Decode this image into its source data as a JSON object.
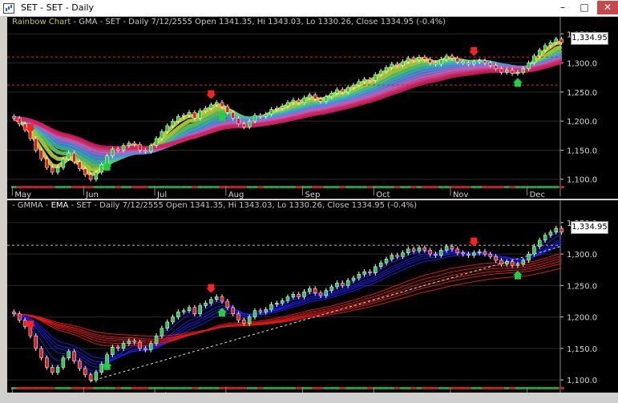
{
  "window": {
    "title": "SET - SET - Daily",
    "min": "–",
    "max": "□",
    "close": "✕"
  },
  "top_panel": {
    "title_prefix": "Rainbow Chart",
    "title_rest": " - GMA - SET - Daily 7/12/2555 Open 1341.35, Hi 1343.03, Lo 1330.26, Close 1334.95 (-0.4%)",
    "last_price": "1,334.95",
    "yticks": [
      "1,350.0",
      "1,300.0",
      "1,250.0",
      "1,200.0",
      "1,150.0",
      "1,100.0"
    ],
    "ylim": [
      1090,
      1360
    ],
    "resistance_levels": [
      1310,
      1262
    ]
  },
  "bottom_panel": {
    "title_prefix": " - GMMA - ",
    "title_ema": "EMA",
    "title_rest": " - SET - Daily 7/12/2555 Open 1341.35, Hi 1343.03, Lo 1330.26, Close 1334.95 (-0.4%)",
    "last_price": "1,334.95",
    "yticks": [
      "1,350.0",
      "1,300.0",
      "1,250.0",
      "1,200.0",
      "1,150.0",
      "1,100.0"
    ],
    "ylim": [
      1090,
      1360
    ],
    "resistance_level": 1314
  },
  "months": [
    "May",
    "Jun",
    "Jul",
    "Aug",
    "Sep",
    "Oct",
    "Nov",
    "Dec"
  ],
  "colors": {
    "up": "#2ecc40",
    "down": "#e02020",
    "grid": "#2a2a2a",
    "rainbow_top": "#e8e040",
    "rainbow_bottom": "#d02060",
    "gmma_short": "#1c1cf0",
    "gmma_long": "#e01818"
  },
  "chart_data": {
    "type": "candlestick",
    "series_close": [
      1205,
      1195,
      1185,
      1170,
      1150,
      1135,
      1120,
      1112,
      1120,
      1135,
      1145,
      1130,
      1118,
      1108,
      1100,
      1112,
      1125,
      1140,
      1152,
      1150,
      1158,
      1162,
      1160,
      1150,
      1148,
      1158,
      1170,
      1182,
      1192,
      1200,
      1208,
      1210,
      1215,
      1205,
      1218,
      1222,
      1228,
      1232,
      1225,
      1215,
      1205,
      1195,
      1190,
      1200,
      1210,
      1208,
      1212,
      1220,
      1222,
      1226,
      1232,
      1236,
      1232,
      1240,
      1245,
      1238,
      1234,
      1242,
      1248,
      1254,
      1250,
      1258,
      1262,
      1268,
      1272,
      1270,
      1280,
      1286,
      1292,
      1298,
      1296,
      1302,
      1308,
      1305,
      1310,
      1306,
      1300,
      1298,
      1306,
      1312,
      1308,
      1302,
      1300,
      1298,
      1302,
      1304,
      1300,
      1296,
      1290,
      1284,
      1288,
      1282,
      1284,
      1290,
      1300,
      1312,
      1322,
      1330,
      1335,
      1341,
      1334.95
    ],
    "ylim": [
      1090,
      1360
    ]
  }
}
